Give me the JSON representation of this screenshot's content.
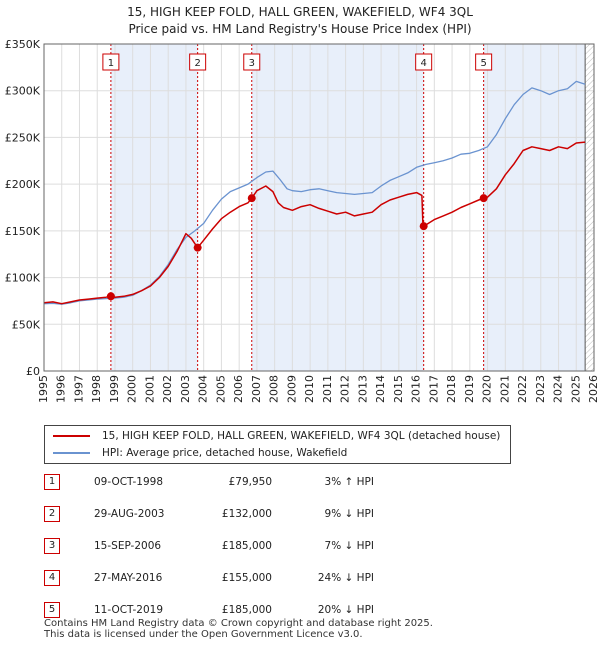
{
  "title_line1": "15, HIGH KEEP FOLD, HALL GREEN, WAKEFIELD, WF4 3QL",
  "title_line2": "Price paid vs. HM Land Registry's House Price Index (HPI)",
  "colors": {
    "red_series": "#cc0000",
    "blue_series": "#6a93d0",
    "shade": "#e8effa",
    "marker_line": "#cc0000",
    "grid": "#dddddd"
  },
  "chart_data": {
    "type": "line",
    "title": "15, HIGH KEEP FOLD, HALL GREEN, WAKEFIELD, WF4 3QL — Price paid vs. HM Land Registry's House Price Index (HPI)",
    "xlabel": "",
    "ylabel": "",
    "xlim": [
      1995,
      2026
    ],
    "ylim": [
      0,
      350000
    ],
    "x_ticks": [
      1995,
      1996,
      1997,
      1998,
      1999,
      2000,
      2001,
      2002,
      2003,
      2004,
      2005,
      2006,
      2007,
      2008,
      2009,
      2010,
      2011,
      2012,
      2013,
      2014,
      2015,
      2016,
      2017,
      2018,
      2019,
      2020,
      2021,
      2022,
      2023,
      2024,
      2025,
      2026
    ],
    "y_ticks": [
      {
        "value": 0,
        "label": "£0"
      },
      {
        "value": 50000,
        "label": "£50K"
      },
      {
        "value": 100000,
        "label": "£100K"
      },
      {
        "value": 150000,
        "label": "£150K"
      },
      {
        "value": 200000,
        "label": "£200K"
      },
      {
        "value": 250000,
        "label": "£250K"
      },
      {
        "value": 300000,
        "label": "£300K"
      },
      {
        "value": 350000,
        "label": "£350K"
      }
    ],
    "grid": true,
    "data_end_year": 2025.5,
    "series": [
      {
        "name": "15, HIGH KEEP FOLD, HALL GREEN, WAKEFIELD, WF4 3QL (detached house)",
        "x": [
          1995.0,
          1995.5,
          1996.0,
          1996.5,
          1997.0,
          1997.5,
          1998.0,
          1998.5,
          1998.77,
          1999.0,
          1999.5,
          2000.0,
          2000.5,
          2001.0,
          2001.5,
          2002.0,
          2002.5,
          2003.0,
          2003.3,
          2003.66,
          2004.0,
          2004.5,
          2005.0,
          2005.5,
          2006.0,
          2006.5,
          2006.71,
          2007.0,
          2007.5,
          2007.9,
          2008.2,
          2008.5,
          2009.0,
          2009.5,
          2010.0,
          2010.5,
          2011.0,
          2011.5,
          2012.0,
          2012.5,
          2013.0,
          2013.5,
          2014.0,
          2014.5,
          2015.0,
          2015.5,
          2016.0,
          2016.3,
          2016.35,
          2016.4,
          2017.0,
          2017.5,
          2018.0,
          2018.5,
          2019.0,
          2019.5,
          2019.78,
          2020.0,
          2020.5,
          2021.0,
          2021.5,
          2022.0,
          2022.5,
          2023.0,
          2023.5,
          2024.0,
          2024.5,
          2025.0,
          2025.5
        ],
        "values": [
          73000,
          74000,
          72000,
          74000,
          76000,
          77000,
          78000,
          79000,
          79950,
          79000,
          80000,
          82000,
          86000,
          91000,
          100000,
          112000,
          128000,
          147000,
          142000,
          132000,
          140000,
          152000,
          163000,
          170000,
          176000,
          180000,
          185000,
          193000,
          198000,
          192000,
          180000,
          175000,
          172000,
          176000,
          178000,
          174000,
          171000,
          168000,
          170000,
          166000,
          168000,
          170000,
          178000,
          183000,
          186000,
          189000,
          191000,
          188000,
          160000,
          155000,
          162000,
          166000,
          170000,
          175000,
          179000,
          183000,
          185000,
          186000,
          195000,
          210000,
          222000,
          236000,
          240000,
          238000,
          236000,
          240000,
          238000,
          244000,
          245000
        ]
      },
      {
        "name": "HPI: Average price, detached house, Wakefield",
        "x": [
          1995.0,
          1995.5,
          1996.0,
          1996.5,
          1997.0,
          1997.5,
          1998.0,
          1998.5,
          1999.0,
          1999.5,
          2000.0,
          2000.5,
          2001.0,
          2001.5,
          2002.0,
          2002.5,
          2003.0,
          2003.5,
          2004.0,
          2004.5,
          2005.0,
          2005.5,
          2006.0,
          2006.5,
          2007.0,
          2007.5,
          2007.9,
          2008.3,
          2008.7,
          2009.0,
          2009.5,
          2010.0,
          2010.5,
          2011.0,
          2011.5,
          2012.0,
          2012.5,
          2013.0,
          2013.5,
          2014.0,
          2014.5,
          2015.0,
          2015.5,
          2016.0,
          2016.5,
          2017.0,
          2017.5,
          2018.0,
          2018.5,
          2019.0,
          2019.5,
          2020.0,
          2020.5,
          2021.0,
          2021.5,
          2022.0,
          2022.5,
          2023.0,
          2023.5,
          2024.0,
          2024.5,
          2025.0,
          2025.5
        ],
        "values": [
          72000,
          72500,
          71500,
          73000,
          75000,
          76000,
          77000,
          77500,
          78000,
          79000,
          81000,
          86000,
          92000,
          101000,
          114000,
          130000,
          143000,
          150000,
          158000,
          172000,
          184000,
          192000,
          196000,
          200000,
          207000,
          213000,
          214000,
          205000,
          195000,
          193000,
          192000,
          194000,
          195000,
          193000,
          191000,
          190000,
          189000,
          190000,
          191000,
          198000,
          204000,
          208000,
          212000,
          218000,
          221000,
          223000,
          225000,
          228000,
          232000,
          233000,
          236000,
          240000,
          253000,
          270000,
          285000,
          296000,
          303000,
          300000,
          296000,
          300000,
          302000,
          310000,
          307000
        ]
      }
    ],
    "sales": [
      {
        "label": "1",
        "year": 1998.77,
        "price": 79950
      },
      {
        "label": "2",
        "year": 2003.66,
        "price": 132000
      },
      {
        "label": "3",
        "year": 2006.71,
        "price": 185000
      },
      {
        "label": "4",
        "year": 2016.4,
        "price": 155000
      },
      {
        "label": "5",
        "year": 2019.78,
        "price": 185000
      }
    ]
  },
  "legend": {
    "red_label": "15, HIGH KEEP FOLD, HALL GREEN, WAKEFIELD, WF4 3QL (detached house)",
    "blue_label": "HPI: Average price, detached house, Wakefield"
  },
  "table_rows": [
    {
      "num": "1",
      "date": "09-OCT-1998",
      "price": "£79,950",
      "hpi": "3% ↑ HPI"
    },
    {
      "num": "2",
      "date": "29-AUG-2003",
      "price": "£132,000",
      "hpi": "9% ↓ HPI"
    },
    {
      "num": "3",
      "date": "15-SEP-2006",
      "price": "£185,000",
      "hpi": "7% ↓ HPI"
    },
    {
      "num": "4",
      "date": "27-MAY-2016",
      "price": "£155,000",
      "hpi": "24% ↓ HPI"
    },
    {
      "num": "5",
      "date": "11-OCT-2019",
      "price": "£185,000",
      "hpi": "20% ↓ HPI"
    }
  ],
  "footer_line1": "Contains HM Land Registry data © Crown copyright and database right 2025.",
  "footer_line2": "This data is licensed under the Open Government Licence v3.0."
}
